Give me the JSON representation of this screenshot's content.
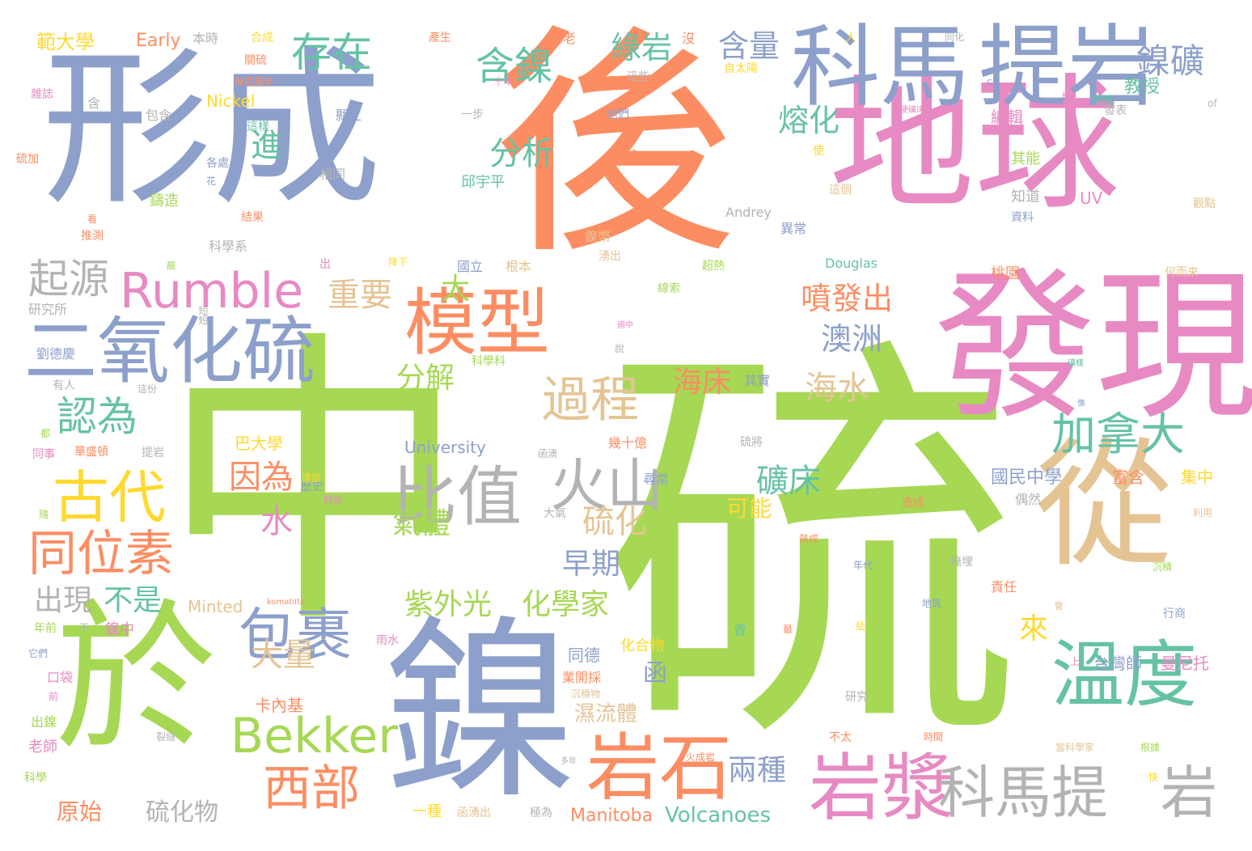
{
  "palette": {
    "blue": "#8da0cb",
    "orange": "#fc8d62",
    "pink": "#e78ac3",
    "green": "#a6d854",
    "gold": "#e5c494",
    "teal": "#66c2a5",
    "gray": "#b3b3b3",
    "yellow": "#ffd92f"
  },
  "words": [
    {
      "text": "中",
      "color": "green"
    },
    {
      "text": "硫",
      "color": "green"
    },
    {
      "text": "後",
      "color": "orange"
    },
    {
      "text": "形成",
      "color": "blue"
    },
    {
      "text": "地球",
      "color": "pink"
    },
    {
      "text": "發現",
      "color": "pink"
    },
    {
      "text": "從",
      "color": "gold"
    },
    {
      "text": "鎳",
      "color": "blue"
    },
    {
      "text": "於",
      "color": "green"
    },
    {
      "text": "科馬",
      "color": "blue"
    },
    {
      "text": "提岩",
      "color": "blue"
    },
    {
      "text": "模型",
      "color": "orange"
    },
    {
      "text": "二氧化硫",
      "color": "blue"
    },
    {
      "text": "Rumble",
      "color": "pink"
    },
    {
      "text": "溫度",
      "color": "teal"
    },
    {
      "text": "岩漿",
      "color": "pink"
    },
    {
      "text": "岩石",
      "color": "orange"
    },
    {
      "text": "科馬提",
      "color": "gray"
    },
    {
      "text": "岩",
      "color": "gray"
    },
    {
      "text": "Bekker",
      "color": "green"
    },
    {
      "text": "古代",
      "color": "yellow"
    },
    {
      "text": "比值",
      "color": "gray"
    },
    {
      "text": "火山",
      "color": "gray"
    },
    {
      "text": "同位素",
      "color": "orange"
    },
    {
      "text": "包裹",
      "color": "blue"
    },
    {
      "text": "西部",
      "color": "orange"
    },
    {
      "text": "加拿大",
      "color": "teal"
    },
    {
      "text": "過程",
      "color": "gold"
    },
    {
      "text": "認為",
      "color": "teal"
    },
    {
      "text": "起源",
      "color": "gray"
    },
    {
      "text": "存在",
      "color": "teal"
    },
    {
      "text": "含鎳",
      "color": "teal"
    },
    {
      "text": "綠岩",
      "color": "teal"
    },
    {
      "text": "含量",
      "color": "blue"
    },
    {
      "text": "鎳礦",
      "color": "blue"
    },
    {
      "text": "進",
      "color": "teal"
    },
    {
      "text": "分析",
      "color": "teal"
    },
    {
      "text": "熔化",
      "color": "teal"
    },
    {
      "text": "噴發出",
      "color": "orange"
    },
    {
      "text": "澳洲",
      "color": "blue"
    },
    {
      "text": "重要",
      "color": "gold"
    },
    {
      "text": "太",
      "color": "green"
    },
    {
      "text": "分解",
      "color": "green"
    },
    {
      "text": "因為",
      "color": "orange"
    },
    {
      "text": "水",
      "color": "pink"
    },
    {
      "text": "氣體",
      "color": "green"
    },
    {
      "text": "礦床",
      "color": "teal"
    },
    {
      "text": "海床",
      "color": "orange"
    },
    {
      "text": "海水",
      "color": "gold"
    },
    {
      "text": "硫化",
      "color": "gold"
    },
    {
      "text": "早期",
      "color": "blue"
    },
    {
      "text": "紫外光",
      "color": "green"
    },
    {
      "text": "化學家",
      "color": "green"
    },
    {
      "text": "來",
      "color": "yellow"
    },
    {
      "text": "函",
      "color": "blue"
    },
    {
      "text": "大量",
      "color": "gold"
    },
    {
      "text": "不是",
      "color": "teal"
    },
    {
      "text": "出現",
      "color": "gray"
    },
    {
      "text": "可能",
      "color": "yellow"
    },
    {
      "text": "兩種",
      "color": "blue"
    },
    {
      "text": "硫化物",
      "color": "gray"
    },
    {
      "text": "原始",
      "color": "orange"
    },
    {
      "text": "Volcanoes",
      "color": "teal"
    },
    {
      "text": "Manitoba",
      "color": "orange"
    },
    {
      "text": "濕流體",
      "color": "gold"
    },
    {
      "text": "卡內基",
      "color": "orange"
    },
    {
      "text": "University",
      "color": "blue"
    },
    {
      "text": "幾十億",
      "color": "orange"
    },
    {
      "text": "巴大學",
      "color": "yellow"
    },
    {
      "text": "Minted",
      "color": "gold"
    },
    {
      "text": "komatiite",
      "color": "orange"
    },
    {
      "text": "國民中學",
      "color": "blue"
    },
    {
      "text": "台灣師",
      "color": "blue"
    },
    {
      "text": "曼尼托",
      "color": "pink"
    },
    {
      "text": "富含",
      "color": "orange"
    },
    {
      "text": "集中",
      "color": "yellow"
    },
    {
      "text": "教授",
      "color": "teal"
    },
    {
      "text": "編輯",
      "color": "pink"
    },
    {
      "text": "其能",
      "color": "green"
    },
    {
      "text": "知道",
      "color": "gray"
    },
    {
      "text": "資料",
      "color": "blue"
    },
    {
      "text": "UV",
      "color": "pink"
    },
    {
      "text": "觀點",
      "color": "gold"
    },
    {
      "text": "Andrey",
      "color": "gray"
    },
    {
      "text": "異常",
      "color": "blue"
    },
    {
      "text": "Douglas",
      "color": "teal"
    },
    {
      "text": "桃園",
      "color": "orange"
    },
    {
      "text": "何而來",
      "color": "gold"
    },
    {
      "text": "範大學",
      "color": "yellow"
    },
    {
      "text": "Early",
      "color": "orange"
    },
    {
      "text": "本時",
      "color": "gray"
    },
    {
      "text": "合成",
      "color": "yellow"
    },
    {
      "text": "產生",
      "color": "orange"
    },
    {
      "text": "古老",
      "color": "orange"
    },
    {
      "text": "沒",
      "color": "orange"
    },
    {
      "text": "人",
      "color": "yellow"
    },
    {
      "text": "同化",
      "color": "gray"
    },
    {
      "text": "關硫",
      "color": "orange"
    },
    {
      "text": "幾百萬年",
      "color": "orange"
    },
    {
      "text": "十年",
      "color": "pink"
    },
    {
      "text": "自太陽",
      "color": "yellow"
    },
    {
      "text": "這些",
      "color": "gray"
    },
    {
      "text": "雜誌",
      "color": "pink"
    },
    {
      "text": "含",
      "color": "gray"
    },
    {
      "text": "Nickel",
      "color": "yellow"
    },
    {
      "text": "包含",
      "color": "gray"
    },
    {
      "text": "一步",
      "color": "gray"
    },
    {
      "text": "他們",
      "color": "blue"
    },
    {
      "text": "閃電",
      "color": "teal"
    },
    {
      "text": "發表",
      "color": "gray"
    },
    {
      "text": "硫加",
      "color": "orange"
    },
    {
      "text": "這樣",
      "color": "teal"
    },
    {
      "text": "縣立",
      "color": "blue"
    },
    {
      "text": "不會",
      "color": "orange"
    },
    {
      "text": "使",
      "color": "yellow"
    },
    {
      "text": "各處",
      "color": "blue"
    },
    {
      "text": "相同",
      "color": "gray"
    },
    {
      "text": "邱宇平",
      "color": "teal"
    },
    {
      "text": "鑄造",
      "color": "green"
    },
    {
      "text": "這個",
      "color": "gold"
    },
    {
      "text": "推測",
      "color": "orange"
    },
    {
      "text": "結果",
      "color": "orange"
    },
    {
      "text": "鎳幣",
      "color": "gold"
    },
    {
      "text": "湧出",
      "color": "gold"
    },
    {
      "text": "科學系",
      "color": "gray"
    },
    {
      "text": "國立",
      "color": "blue"
    },
    {
      "text": "根本",
      "color": "gold"
    },
    {
      "text": "超熱",
      "color": "green"
    },
    {
      "text": "研究所",
      "color": "gray"
    },
    {
      "text": "線索",
      "color": "green"
    },
    {
      "text": "劉德慶",
      "color": "blue"
    },
    {
      "text": "科學科",
      "color": "green"
    },
    {
      "text": "其實",
      "color": "blue"
    },
    {
      "text": "有人",
      "color": "gray"
    },
    {
      "text": "這份",
      "color": "gray"
    },
    {
      "text": "同事",
      "color": "pink"
    },
    {
      "text": "華盛頓",
      "color": "orange"
    },
    {
      "text": "提岩",
      "color": "gray"
    },
    {
      "text": "尋常",
      "color": "blue"
    },
    {
      "text": "歷史",
      "color": "blue"
    },
    {
      "text": "大氣",
      "color": "gray"
    },
    {
      "text": "硫將",
      "color": "gray"
    },
    {
      "text": "造成",
      "color": "orange"
    },
    {
      "text": "偶然",
      "color": "gray"
    },
    {
      "text": "年前",
      "color": "green"
    },
    {
      "text": "鎳中",
      "color": "pink"
    },
    {
      "text": "口袋",
      "color": "pink"
    },
    {
      "text": "出鎳",
      "color": "green"
    },
    {
      "text": "老師",
      "color": "pink"
    },
    {
      "text": "科學",
      "color": "green"
    },
    {
      "text": "裂縫",
      "color": "gray"
    },
    {
      "text": "一種",
      "color": "yellow"
    },
    {
      "text": "函湧出",
      "color": "gold"
    },
    {
      "text": "極為",
      "color": "gray"
    },
    {
      "text": "火成岩",
      "color": "orange"
    },
    {
      "text": "研究",
      "color": "gray"
    },
    {
      "text": "不太",
      "color": "orange"
    },
    {
      "text": "時間",
      "color": "orange"
    },
    {
      "text": "當科學家",
      "color": "gold"
    },
    {
      "text": "根據",
      "color": "green"
    },
    {
      "text": "同德",
      "color": "blue"
    },
    {
      "text": "化合物",
      "color": "yellow"
    },
    {
      "text": "業開採",
      "color": "orange"
    },
    {
      "text": "沉積物",
      "color": "gold"
    },
    {
      "text": "責任",
      "color": "orange"
    },
    {
      "text": "掩埋",
      "color": "gray"
    },
    {
      "text": "地質",
      "color": "blue"
    },
    {
      "text": "沉積",
      "color": "green"
    },
    {
      "text": "行商",
      "color": "blue"
    },
    {
      "text": "雨水",
      "color": "pink"
    },
    {
      "text": "年代",
      "color": "blue"
    },
    {
      "text": "曾",
      "color": "teal"
    },
    {
      "text": "最",
      "color": "orange"
    },
    {
      "text": "它們",
      "color": "blue"
    },
    {
      "text": "不",
      "color": "gray"
    },
    {
      "text": "前",
      "color": "pink"
    },
    {
      "text": "都",
      "color": "green"
    },
    {
      "text": "隨",
      "color": "green"
    },
    {
      "text": "看",
      "color": "orange"
    },
    {
      "text": "花",
      "color": "blue"
    },
    {
      "text": "短短",
      "color": "gray"
    },
    {
      "text": "晨",
      "color": "green"
    },
    {
      "text": "出",
      "color": "pink"
    },
    {
      "text": "降下",
      "color": "yellow"
    },
    {
      "text": "說",
      "color": "gray"
    },
    {
      "text": "國中",
      "color": "pink"
    },
    {
      "text": "函湧",
      "color": "gray"
    },
    {
      "text": "遭發",
      "color": "yellow"
    },
    {
      "text": "時期",
      "color": "pink"
    },
    {
      "text": "熱成",
      "color": "orange"
    },
    {
      "text": "結",
      "color": "yellow"
    },
    {
      "text": "會",
      "color": "gold"
    },
    {
      "text": "上",
      "color": "pink"
    },
    {
      "text": "快",
      "color": "yellow"
    },
    {
      "text": "多年",
      "color": "gray"
    },
    {
      "text": "利用",
      "color": "gold"
    },
    {
      "text": "礦樣",
      "color": "teal"
    },
    {
      "text": "像",
      "color": "blue"
    },
    {
      "text": "約",
      "color": "pink"
    },
    {
      "text": "of",
      "color": "gray"
    },
    {
      "text": "c",
      "color": "blue"
    },
    {
      "text": "硬礦床",
      "color": "pink"
    }
  ]
}
